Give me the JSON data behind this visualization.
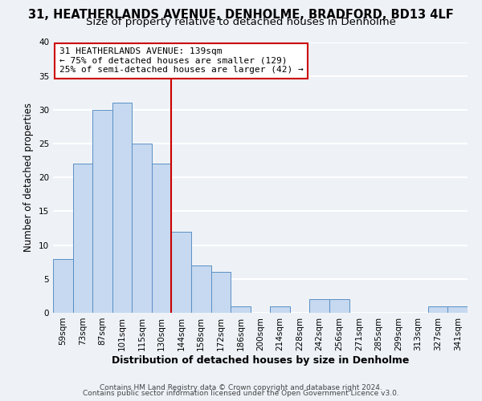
{
  "title1": "31, HEATHERLANDS AVENUE, DENHOLME, BRADFORD, BD13 4LF",
  "title2": "Size of property relative to detached houses in Denholme",
  "xlabel": "Distribution of detached houses by size in Denholme",
  "ylabel": "Number of detached properties",
  "bar_labels": [
    "59sqm",
    "73sqm",
    "87sqm",
    "101sqm",
    "115sqm",
    "130sqm",
    "144sqm",
    "158sqm",
    "172sqm",
    "186sqm",
    "200sqm",
    "214sqm",
    "228sqm",
    "242sqm",
    "256sqm",
    "271sqm",
    "285sqm",
    "299sqm",
    "313sqm",
    "327sqm",
    "341sqm"
  ],
  "bar_values": [
    8,
    22,
    30,
    31,
    25,
    22,
    12,
    7,
    6,
    1,
    0,
    1,
    0,
    2,
    2,
    0,
    0,
    0,
    0,
    1,
    1
  ],
  "bar_color": "#c6d9f0",
  "bar_edge_color": "#5a8fc4",
  "ref_line_color": "#cc0000",
  "ylim": [
    0,
    40
  ],
  "annotation_line1": "31 HEATHERLANDS AVENUE: 139sqm",
  "annotation_line2": "← 75% of detached houses are smaller (129)",
  "annotation_line3": "25% of semi-detached houses are larger (42) →",
  "annotation_box_color": "#ffffff",
  "annotation_box_edge": "#cc0000",
  "footer1": "Contains HM Land Registry data © Crown copyright and database right 2024.",
  "footer2": "Contains public sector information licensed under the Open Government Licence v3.0.",
  "bg_color": "#eef2f7",
  "grid_color": "#ffffff",
  "title1_fontsize": 10.5,
  "title2_fontsize": 9.5,
  "tick_fontsize": 7.5,
  "ylabel_fontsize": 8.5,
  "xlabel_fontsize": 9,
  "annotation_fontsize": 8,
  "footer_fontsize": 6.5
}
